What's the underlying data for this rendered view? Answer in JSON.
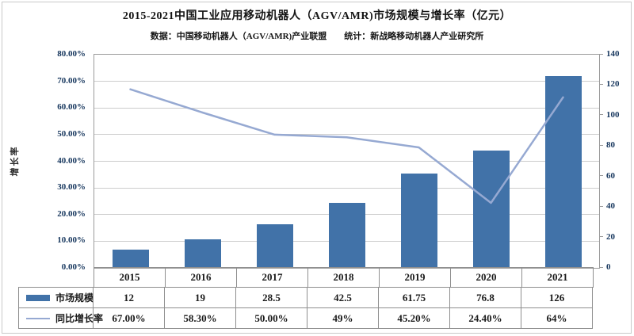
{
  "header": {
    "title": "2015-2021中国工业应用移动机器人（AGV/AMR)市场规模与增长率（亿元）",
    "subtitle": "数据：中国移动机器人（AGV/AMR)产业联盟　　统计：新战略移动机器人产业研究所"
  },
  "axes": {
    "left_label": "增长率",
    "left_ticks": [
      "80.00%",
      "70.00%",
      "60.00%",
      "50.00%",
      "40.00%",
      "30.00%",
      "20.00%",
      "10.00%",
      "0.00%"
    ],
    "right_ticks": [
      "140",
      "120",
      "100",
      "80",
      "60",
      "40",
      "20",
      "0"
    ]
  },
  "chart_data": {
    "type": "bar+line",
    "title": "2015-2021中国工业应用移动机器人（AGV/AMR)市场规模与增长率（亿元）",
    "categories": [
      "2015",
      "2016",
      "2017",
      "2018",
      "2019",
      "2020",
      "2021"
    ],
    "series": [
      {
        "name": "市场规模",
        "type": "bar",
        "axis": "right",
        "values": [
          12,
          19,
          28.5,
          42.5,
          61.75,
          76.8,
          126
        ],
        "labels": [
          "12",
          "19",
          "28.5",
          "42.5",
          "61.75",
          "76.8",
          "126"
        ],
        "color": "#4172A8"
      },
      {
        "name": "同比增长率",
        "type": "line",
        "axis": "left",
        "values": [
          0.67,
          0.583,
          0.5,
          0.49,
          0.452,
          0.244,
          0.64
        ],
        "labels": [
          "67.00%",
          "58.30%",
          "50.00%",
          "49%",
          "45.20%",
          "24.40%",
          "64%"
        ],
        "color": "#96A9D2"
      }
    ],
    "ylabel_left": "增长率",
    "left_axis_range": [
      0,
      0.8
    ],
    "right_axis_range": [
      0,
      140
    ],
    "grid": true,
    "legend_position": "table-bottom"
  },
  "colors": {
    "bar": "#4172A8",
    "line": "#96A9D2",
    "axis_text": "#17375E",
    "border": "#9b9b9b",
    "gridline": "#cccccc"
  }
}
